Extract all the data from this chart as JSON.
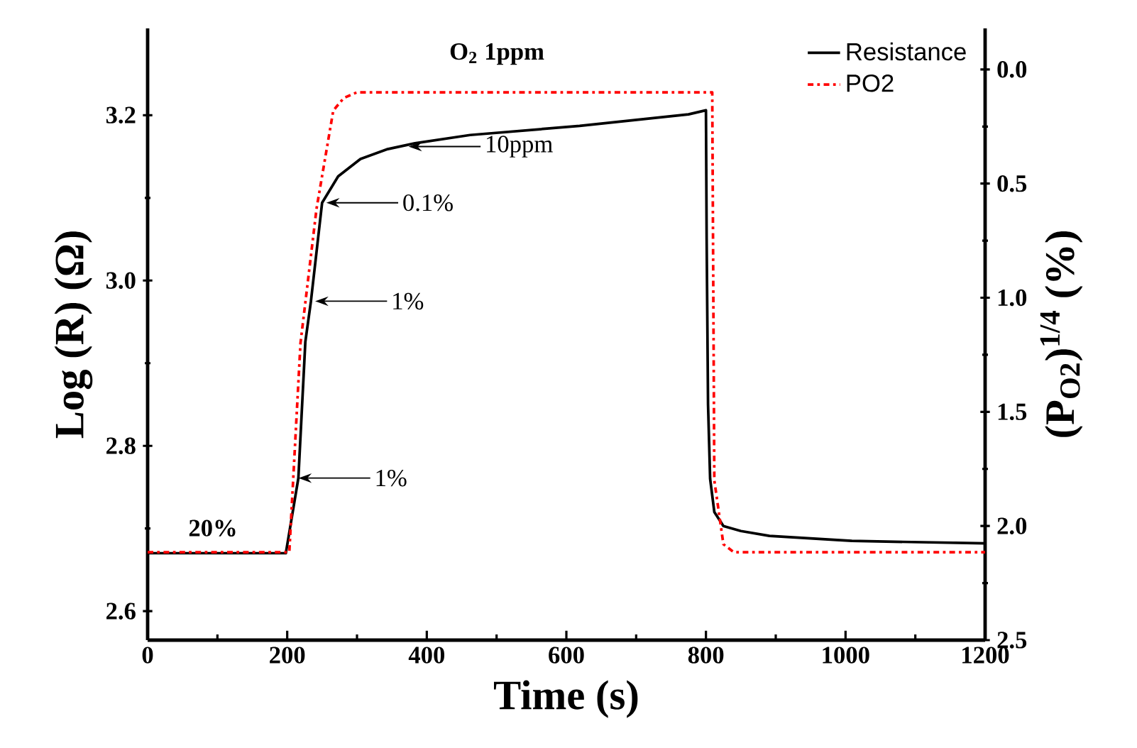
{
  "chart_data": {
    "type": "line",
    "xlabel": "Time (s)",
    "ylabel": "Log (R) (Ω)",
    "y2label": "(P$_{O2}$)$^{1/4}$ (%)",
    "xlim": [
      0,
      1200
    ],
    "xticks": [
      0,
      200,
      400,
      600,
      800,
      1000,
      1200
    ],
    "ylim": [
      2.565,
      3.305
    ],
    "yticks": [
      2.6,
      2.8,
      {
        "value": 3.0,
        "label": "3.0"
      },
      3.2
    ],
    "y2lim": [
      2.5,
      -0.18
    ],
    "y2ticks": [
      {
        "value": 0,
        "label": "0.0"
      },
      0.5,
      {
        "value": 1.0,
        "label": "1.0"
      },
      1.5,
      {
        "value": 2.0,
        "label": "2.0"
      },
      2.5
    ],
    "legend": "top right",
    "grid": false,
    "marker": "none",
    "series": [
      {
        "name": "Resistance",
        "color": "#000000",
        "line_style": "solid",
        "x": [
          0,
          100,
          198,
          216,
          226,
          234,
          250,
          273,
          305,
          344,
          383,
          462,
          619,
          775,
          800,
          801,
          803,
          806,
          812,
          825,
          850,
          891,
          1009,
          1200
        ],
        "values": [
          2.67,
          2.67,
          2.67,
          2.761,
          2.926,
          2.975,
          3.094,
          3.126,
          3.147,
          3.159,
          3.166,
          3.176,
          3.187,
          3.201,
          3.206,
          3.05,
          2.85,
          2.76,
          2.72,
          2.703,
          2.697,
          2.691,
          2.685,
          2.682
        ]
      },
      {
        "name": "PO2",
        "color": "#ff0000",
        "line_style": "dashdot",
        "axis": "y2",
        "x": [
          0,
          203,
          219,
          242,
          266,
          281,
          300,
          809,
          812,
          825,
          840,
          1200
        ],
        "values": [
          2.115,
          2.115,
          1.2,
          0.61,
          0.18,
          0.125,
          0.1,
          0.1,
          1.8,
          2.08,
          2.115,
          2.115
        ]
      }
    ],
    "annotations": [
      "20%",
      "O$_{2}$ 1ppm",
      "10ppm",
      "0.1%",
      "1%",
      "1%"
    ]
  }
}
